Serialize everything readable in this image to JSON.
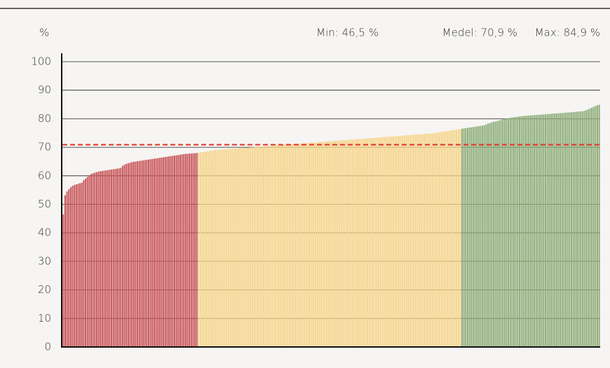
{
  "chart_data": {
    "type": "bar",
    "y_label": "%",
    "stats": [
      {
        "value": 84.9,
        "label": "Max: 84,9 %"
      },
      {
        "value": 70.9,
        "label": "Medel: 70,9 %"
      },
      {
        "value": 46.5,
        "label": "Min: 46,5 %"
      }
    ],
    "reference_color": "#e03a2f",
    "ylim": [
      0,
      100
    ],
    "yticks": [
      0,
      10,
      20,
      30,
      40,
      50,
      60,
      70,
      80,
      90,
      100
    ],
    "grid": true,
    "series": [
      {
        "color": "#c9575b",
        "values": [
          46.5,
          53.2,
          54.5,
          55.3,
          56.0,
          56.5,
          56.8,
          57.0,
          57.2,
          57.4,
          57.6,
          58.5,
          59.0,
          59.6,
          60.2,
          60.6,
          60.9,
          61.1,
          61.3,
          61.5,
          61.6,
          61.7,
          61.8,
          61.9,
          62.0,
          62.1,
          62.2,
          62.3,
          62.4,
          62.5,
          62.6,
          62.8,
          63.5,
          63.9,
          64.2,
          64.4,
          64.6,
          64.8,
          64.9,
          65.0,
          65.1,
          65.2,
          65.3,
          65.4,
          65.5,
          65.6,
          65.7,
          65.8,
          65.9,
          66.0,
          66.1,
          66.2,
          66.3,
          66.4,
          66.5,
          66.6,
          66.7,
          66.8,
          66.9,
          67.0,
          67.1,
          67.2,
          67.3,
          67.4,
          67.5,
          67.6,
          67.7,
          67.7,
          67.8,
          67.8,
          67.9,
          67.9,
          68.0
        ]
      },
      {
        "color": "#f7d58a",
        "values": [
          68.1,
          68.2,
          68.3,
          68.4,
          68.5,
          68.6,
          68.7,
          68.8,
          68.9,
          69.0,
          69.1,
          69.1,
          69.2,
          69.2,
          69.3,
          69.3,
          69.4,
          69.4,
          69.5,
          69.5,
          69.6,
          69.6,
          69.7,
          69.7,
          69.8,
          69.8,
          69.9,
          69.9,
          70.0,
          70.0,
          70.1,
          70.1,
          70.2,
          70.2,
          70.3,
          70.3,
          70.4,
          70.4,
          70.5,
          70.5,
          70.6,
          70.6,
          70.7,
          70.7,
          70.8,
          70.8,
          70.9,
          70.9,
          71.0,
          71.0,
          71.1,
          71.1,
          71.2,
          71.2,
          71.3,
          71.3,
          71.4,
          71.4,
          71.5,
          71.5,
          71.6,
          71.6,
          71.7,
          71.7,
          71.8,
          71.8,
          71.9,
          71.9,
          72.0,
          72.0,
          72.1,
          72.1,
          72.2,
          72.2,
          72.3,
          72.3,
          72.4,
          72.4,
          72.5,
          72.5,
          72.6,
          72.6,
          72.7,
          72.7,
          72.8,
          72.8,
          72.9,
          72.9,
          73.0,
          73.0,
          73.1,
          73.1,
          73.2,
          73.2,
          73.3,
          73.3,
          73.4,
          73.4,
          73.5,
          73.5,
          73.6,
          73.6,
          73.7,
          73.7,
          73.8,
          73.8,
          73.9,
          73.9,
          74.0,
          74.0,
          74.1,
          74.1,
          74.2,
          74.2,
          74.3,
          74.3,
          74.4,
          74.4,
          74.5,
          74.5,
          74.6,
          74.6,
          74.7,
          74.7,
          74.8,
          74.8,
          74.9,
          75.0,
          75.1,
          75.2,
          75.3,
          75.4,
          75.5,
          75.6,
          75.7,
          75.8,
          75.9,
          76.0,
          76.1,
          76.2,
          76.3,
          76.4
        ]
      },
      {
        "color": "#8fae7b",
        "values": [
          76.5,
          76.6,
          76.7,
          76.8,
          76.9,
          77.0,
          77.1,
          77.2,
          77.3,
          77.4,
          77.5,
          77.6,
          77.7,
          78.0,
          78.3,
          78.5,
          78.7,
          78.9,
          79.0,
          79.2,
          79.4,
          79.6,
          79.8,
          80.0,
          80.1,
          80.2,
          80.3,
          80.4,
          80.5,
          80.6,
          80.7,
          80.8,
          80.9,
          81.0,
          81.0,
          81.1,
          81.1,
          81.2,
          81.2,
          81.3,
          81.3,
          81.4,
          81.4,
          81.5,
          81.5,
          81.6,
          81.6,
          81.7,
          81.7,
          81.8,
          81.8,
          81.9,
          81.9,
          82.0,
          82.0,
          82.1,
          82.1,
          82.2,
          82.2,
          82.3,
          82.3,
          82.4,
          82.5,
          82.5,
          82.6,
          82.6,
          82.8,
          83.0,
          83.3,
          83.6,
          83.9,
          84.2,
          84.5,
          84.7,
          84.9
        ]
      }
    ]
  }
}
